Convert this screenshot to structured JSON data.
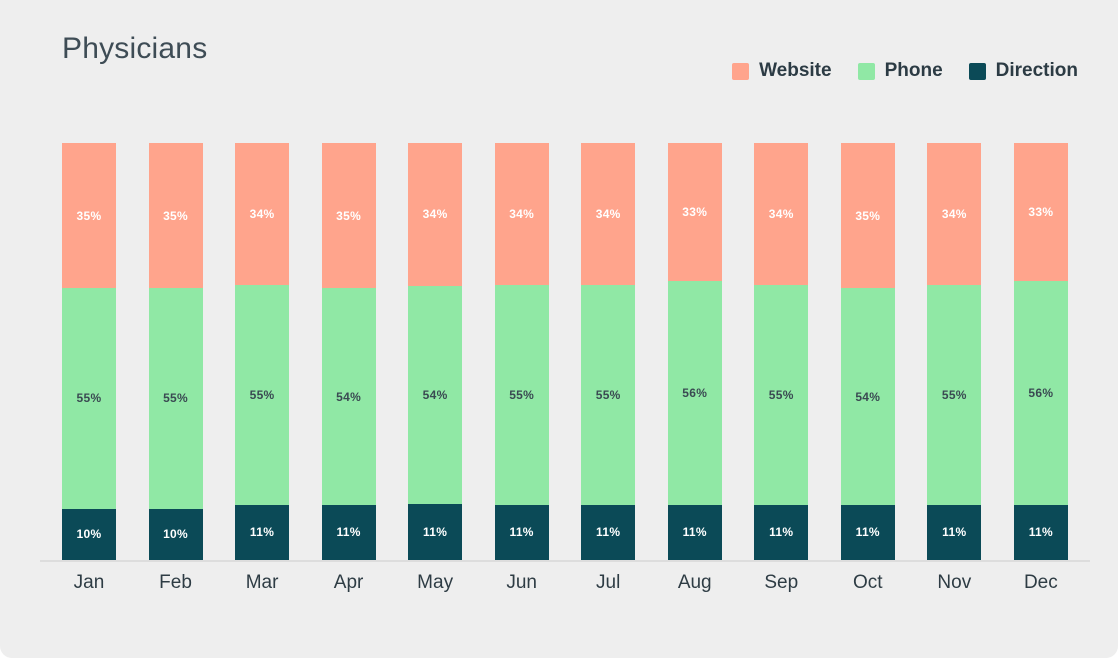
{
  "title": "Physicians",
  "chart_data": {
    "type": "bar",
    "stacked": true,
    "title": "Physicians",
    "categories": [
      "Jan",
      "Feb",
      "Mar",
      "Apr",
      "May",
      "Jun",
      "Jul",
      "Aug",
      "Sep",
      "Oct",
      "Nov",
      "Dec"
    ],
    "series": [
      {
        "name": "Website",
        "color": "#FFA48C",
        "label_color": "#FFFFFF",
        "values": [
          35,
          35,
          34,
          35,
          34,
          34,
          34,
          33,
          34,
          35,
          34,
          33
        ]
      },
      {
        "name": "Phone",
        "color": "#90E8A5",
        "label_color": "#3A4A52",
        "values": [
          55,
          55,
          55,
          54,
          54,
          55,
          55,
          56,
          55,
          54,
          55,
          56
        ]
      },
      {
        "name": "Direction",
        "color": "#0B4A57",
        "label_color": "#FFFFFF",
        "values": [
          10,
          10,
          11,
          11,
          11,
          11,
          11,
          11,
          11,
          11,
          11,
          11
        ]
      }
    ],
    "value_suffix": "%",
    "data_labels": true,
    "legend_position": "top-right",
    "ylim": [
      0,
      100
    ],
    "grid": false,
    "background_color": "#EEEEEE",
    "axis_line_color": "#DDDDDD",
    "title_color": "#3E4C55",
    "legend_text_color": "#2C3B44"
  }
}
